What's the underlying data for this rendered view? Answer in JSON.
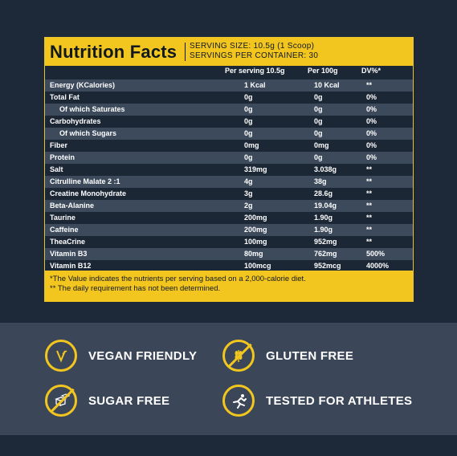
{
  "header": {
    "title": "Nutrition Facts",
    "serving_size": "SERVING SIZE: 10.5g (1 Scoop)",
    "servings_per_container": "SERVINGS PER CONTAINER: 30"
  },
  "columns": {
    "per_serving": "Per serving 10.5g",
    "per_100g": "Per 100g",
    "dv": "DV%*"
  },
  "rows": [
    {
      "name": "Energy (KCalories)",
      "serving": "1 Kcal",
      "per100": "10 Kcal",
      "dv": "**"
    },
    {
      "name": "Total Fat",
      "serving": "0g",
      "per100": "0g",
      "dv": "0%"
    },
    {
      "name": "Of which Saturates",
      "serving": "0g",
      "per100": "0g",
      "dv": "0%"
    },
    {
      "name": "Carbohydrates",
      "serving": "0g",
      "per100": "0g",
      "dv": "0%"
    },
    {
      "name": "Of which Sugars",
      "serving": "0g",
      "per100": "0g",
      "dv": "0%"
    },
    {
      "name": "Fiber",
      "serving": "0mg",
      "per100": "0mg",
      "dv": "0%"
    },
    {
      "name": "Protein",
      "serving": "0g",
      "per100": "0g",
      "dv": "0%"
    },
    {
      "name": "Salt",
      "serving": "319mg",
      "per100": "3.038g",
      "dv": "**"
    },
    {
      "name": "Citrulline Malate 2 :1",
      "serving": "4g",
      "per100": "38g",
      "dv": "**"
    },
    {
      "name": "Creatine Monohydrate",
      "serving": "3g",
      "per100": "28.6g",
      "dv": "**"
    },
    {
      "name": "Beta-Alanine",
      "serving": "2g",
      "per100": "19.04g",
      "dv": "**"
    },
    {
      "name": "Taurine",
      "serving": "200mg",
      "per100": "1.90g",
      "dv": "**"
    },
    {
      "name": "Caffeine",
      "serving": "200mg",
      "per100": "1.90g",
      "dv": "**"
    },
    {
      "name": "TheaCrine",
      "serving": "100mg",
      "per100": "952mg",
      "dv": "**"
    },
    {
      "name": "Vitamin B3",
      "serving": "80mg",
      "per100": "762mg",
      "dv": "500%"
    },
    {
      "name": "Vitamin B12",
      "serving": "100mcg",
      "per100": "952mcg",
      "dv": "4000%"
    }
  ],
  "notes": {
    "note1": "*The Value indicates the nutrients per serving based on a 2,000-calorie diet.",
    "note2": "** The daily requirement has not been determined."
  },
  "badges": {
    "vegan": "VEGAN FRIENDLY",
    "gluten": "GLUTEN FREE",
    "sugar": "SUGAR FREE",
    "athletes": "TESTED FOR ATHLETES"
  },
  "colors": {
    "accent": "#f2c61f",
    "background": "#1d2838",
    "row_shade": "#3c4a5c",
    "badge_band": "#3b4758"
  }
}
